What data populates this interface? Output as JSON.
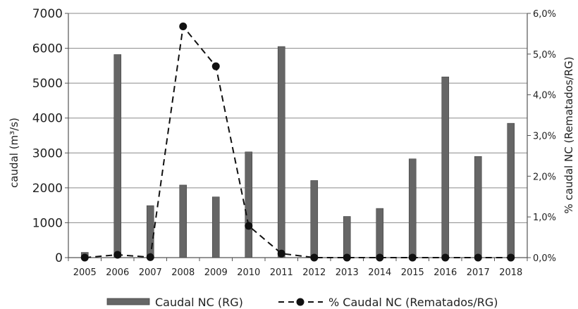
{
  "chart_data": {
    "type": "bar",
    "categories": [
      "2005",
      "2006",
      "2007",
      "2008",
      "2009",
      "2010",
      "2011",
      "2012",
      "2013",
      "2014",
      "2015",
      "2016",
      "2017",
      "2018"
    ],
    "series": [
      {
        "name": "Caudal NC (RG)",
        "type": "bar",
        "axis": "left",
        "color": "#666666",
        "values": [
          150,
          5820,
          1490,
          2080,
          1740,
          3030,
          6050,
          2210,
          1180,
          1410,
          2830,
          5180,
          2900,
          3850
        ]
      },
      {
        "name": "% Caudal NC (Rematados/RG)",
        "type": "line",
        "axis": "right",
        "style": "dashed-with-dots",
        "color": "#111111",
        "values": [
          0.0,
          0.07,
          0.01,
          5.68,
          4.7,
          0.78,
          0.1,
          0.0,
          0.0,
          0.0,
          0.0,
          0.0,
          0.0,
          0.0
        ]
      }
    ],
    "ylabel": "caudal (m³/s)",
    "ylim": [
      0,
      7000
    ],
    "yticks": [
      "0",
      "1000",
      "2000",
      "3000",
      "4000",
      "5000",
      "6000",
      "7000"
    ],
    "y2label": "% caudal NC (Rematados/RG)",
    "y2lim": [
      0,
      6
    ],
    "y2ticks": [
      "0,0%",
      "1,0%",
      "2,0%",
      "3,0%",
      "4,0%",
      "5,0%",
      "6,0%"
    ],
    "grid": true,
    "legend_position": "bottom"
  }
}
